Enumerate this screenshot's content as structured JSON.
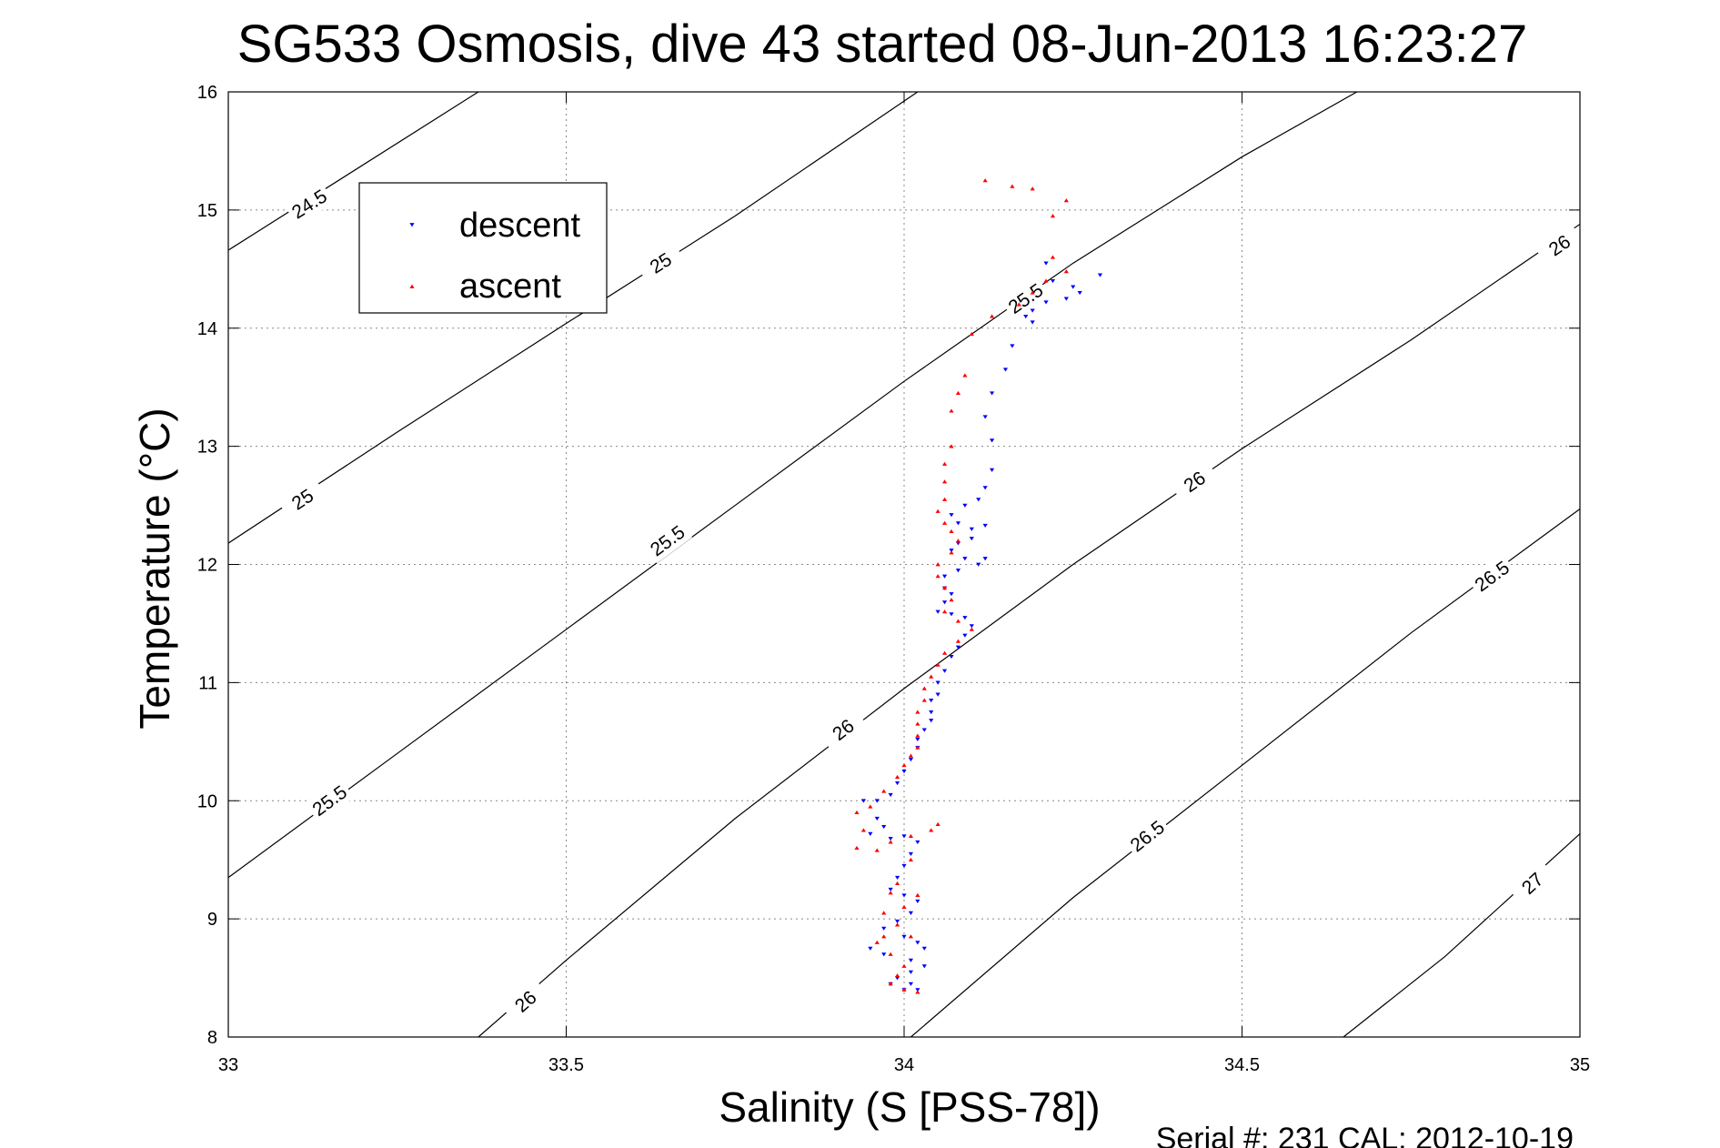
{
  "chart_data": {
    "type": "scatter",
    "title": "SG533 Osmosis, dive 43 started 08-Jun-2013 16:23:27",
    "xlabel": "Salinity (S [PSS-78])",
    "ylabel": "Temperature (°C)",
    "xlim": [
      33,
      35
    ],
    "ylim": [
      8,
      16
    ],
    "xticks": [
      "33",
      "33.5",
      "34",
      "34.5",
      "35"
    ],
    "yticks": [
      "8",
      "9",
      "10",
      "11",
      "12",
      "13",
      "14",
      "15",
      "16"
    ],
    "grid": true,
    "legend_position": "top-left",
    "footer": "Serial #: 231  CAL: 2012-10-19",
    "contours": [
      {
        "label": "24.5",
        "points": [
          [
            33.0,
            14.66
          ],
          [
            33.37,
            16.0
          ]
        ],
        "label_at": [
          [
            33.12,
            15.05
          ]
        ]
      },
      {
        "label": "25",
        "points": [
          [
            33.0,
            12.18
          ],
          [
            33.25,
            13.12
          ],
          [
            33.5,
            14.04
          ],
          [
            33.75,
            14.95
          ],
          [
            34.02,
            16.0
          ]
        ],
        "label_at": [
          [
            33.11,
            12.55
          ],
          [
            33.64,
            14.55
          ]
        ]
      },
      {
        "label": "25.5",
        "points": [
          [
            33.0,
            9.35
          ],
          [
            33.25,
            10.4
          ],
          [
            33.5,
            11.45
          ],
          [
            33.75,
            12.5
          ],
          [
            34.0,
            13.55
          ],
          [
            34.25,
            14.55
          ],
          [
            34.5,
            15.45
          ],
          [
            34.67,
            16.0
          ]
        ],
        "label_at": [
          [
            33.15,
            10.0
          ],
          [
            33.65,
            12.2
          ],
          [
            34.18,
            14.25
          ]
        ]
      },
      {
        "label": "26",
        "points": [
          [
            33.37,
            8.0
          ],
          [
            33.5,
            8.65
          ],
          [
            33.75,
            9.85
          ],
          [
            34.0,
            10.95
          ],
          [
            34.25,
            12.0
          ],
          [
            34.5,
            12.98
          ],
          [
            34.75,
            13.9
          ],
          [
            35.0,
            14.88
          ]
        ],
        "label_at": [
          [
            33.44,
            8.3
          ],
          [
            33.91,
            10.6
          ],
          [
            34.43,
            12.7
          ],
          [
            34.97,
            14.7
          ]
        ]
      },
      {
        "label": "26.5",
        "points": [
          [
            34.01,
            8.0
          ],
          [
            34.25,
            9.18
          ],
          [
            34.5,
            10.3
          ],
          [
            34.75,
            11.42
          ],
          [
            35.0,
            12.47
          ]
        ],
        "label_at": [
          [
            34.36,
            9.7
          ],
          [
            34.87,
            11.9
          ]
        ]
      },
      {
        "label": "27",
        "points": [
          [
            34.65,
            8.0
          ],
          [
            34.8,
            8.68
          ],
          [
            35.0,
            9.72
          ]
        ],
        "label_at": [
          [
            34.93,
            9.3
          ]
        ]
      }
    ],
    "series": [
      {
        "name": "descent",
        "color": "#0000ff",
        "marker": "triangle-down",
        "points": [
          [
            34.21,
            14.55
          ],
          [
            34.22,
            14.4
          ],
          [
            34.25,
            14.35
          ],
          [
            34.29,
            14.45
          ],
          [
            34.26,
            14.3
          ],
          [
            34.24,
            14.25
          ],
          [
            34.21,
            14.22
          ],
          [
            34.19,
            14.15
          ],
          [
            34.18,
            14.1
          ],
          [
            34.19,
            14.05
          ],
          [
            34.16,
            13.85
          ],
          [
            34.15,
            13.65
          ],
          [
            34.13,
            13.45
          ],
          [
            34.12,
            13.25
          ],
          [
            34.13,
            13.05
          ],
          [
            34.13,
            12.8
          ],
          [
            34.12,
            12.65
          ],
          [
            34.11,
            12.55
          ],
          [
            34.09,
            12.5
          ],
          [
            34.07,
            12.42
          ],
          [
            34.08,
            12.35
          ],
          [
            34.1,
            12.3
          ],
          [
            34.12,
            12.33
          ],
          [
            34.1,
            12.22
          ],
          [
            34.08,
            12.18
          ],
          [
            34.07,
            12.12
          ],
          [
            34.09,
            12.05
          ],
          [
            34.12,
            12.05
          ],
          [
            34.11,
            12.0
          ],
          [
            34.08,
            11.95
          ],
          [
            34.06,
            11.9
          ],
          [
            34.06,
            11.8
          ],
          [
            34.07,
            11.75
          ],
          [
            34.06,
            11.68
          ],
          [
            34.05,
            11.6
          ],
          [
            34.07,
            11.58
          ],
          [
            34.09,
            11.55
          ],
          [
            34.1,
            11.48
          ],
          [
            34.09,
            11.4
          ],
          [
            34.08,
            11.3
          ],
          [
            34.07,
            11.22
          ],
          [
            34.06,
            11.1
          ],
          [
            34.05,
            11.0
          ],
          [
            34.05,
            10.9
          ],
          [
            34.04,
            10.85
          ],
          [
            34.04,
            10.75
          ],
          [
            34.04,
            10.68
          ],
          [
            34.03,
            10.6
          ],
          [
            34.02,
            10.52
          ],
          [
            34.02,
            10.45
          ],
          [
            34.01,
            10.35
          ],
          [
            34.0,
            10.25
          ],
          [
            33.99,
            10.15
          ],
          [
            33.98,
            10.05
          ],
          [
            33.96,
            10.0
          ],
          [
            33.94,
            10.0
          ],
          [
            33.96,
            9.85
          ],
          [
            33.97,
            9.78
          ],
          [
            33.95,
            9.72
          ],
          [
            33.98,
            9.68
          ],
          [
            34.0,
            9.7
          ],
          [
            34.02,
            9.65
          ],
          [
            34.01,
            9.55
          ],
          [
            34.0,
            9.45
          ],
          [
            33.99,
            9.35
          ],
          [
            33.98,
            9.25
          ],
          [
            34.0,
            9.2
          ],
          [
            34.02,
            9.15
          ],
          [
            34.01,
            9.05
          ],
          [
            33.99,
            8.98
          ],
          [
            33.97,
            8.92
          ],
          [
            34.0,
            8.85
          ],
          [
            34.02,
            8.8
          ],
          [
            34.03,
            8.75
          ],
          [
            33.95,
            8.75
          ],
          [
            33.97,
            8.7
          ],
          [
            34.01,
            8.65
          ],
          [
            34.03,
            8.6
          ],
          [
            34.01,
            8.55
          ],
          [
            33.99,
            8.5
          ],
          [
            34.01,
            8.45
          ],
          [
            34.02,
            8.4
          ],
          [
            33.98,
            8.45
          ],
          [
            34.0,
            8.4
          ]
        ]
      },
      {
        "name": "ascent",
        "color": "#ff0000",
        "marker": "triangle-up",
        "points": [
          [
            34.12,
            15.25
          ],
          [
            34.16,
            15.2
          ],
          [
            34.19,
            15.18
          ],
          [
            34.24,
            15.08
          ],
          [
            34.22,
            14.95
          ],
          [
            34.22,
            14.6
          ],
          [
            34.24,
            14.48
          ],
          [
            34.21,
            14.4
          ],
          [
            34.19,
            14.3
          ],
          [
            34.17,
            14.2
          ],
          [
            34.13,
            14.1
          ],
          [
            34.1,
            13.95
          ],
          [
            34.09,
            13.6
          ],
          [
            34.08,
            13.45
          ],
          [
            34.07,
            13.3
          ],
          [
            34.07,
            13.0
          ],
          [
            34.06,
            12.85
          ],
          [
            34.06,
            12.7
          ],
          [
            34.06,
            12.55
          ],
          [
            34.05,
            12.45
          ],
          [
            34.06,
            12.35
          ],
          [
            34.07,
            12.28
          ],
          [
            34.08,
            12.2
          ],
          [
            34.07,
            12.1
          ],
          [
            34.05,
            12.0
          ],
          [
            34.05,
            11.9
          ],
          [
            34.06,
            11.8
          ],
          [
            34.07,
            11.7
          ],
          [
            34.06,
            11.6
          ],
          [
            34.08,
            11.52
          ],
          [
            34.1,
            11.45
          ],
          [
            34.08,
            11.35
          ],
          [
            34.06,
            11.25
          ],
          [
            34.05,
            11.15
          ],
          [
            34.04,
            11.05
          ],
          [
            34.03,
            10.95
          ],
          [
            34.03,
            10.85
          ],
          [
            34.02,
            10.75
          ],
          [
            34.02,
            10.65
          ],
          [
            34.02,
            10.55
          ],
          [
            34.02,
            10.45
          ],
          [
            34.01,
            10.38
          ],
          [
            34.0,
            10.3
          ],
          [
            33.99,
            10.2
          ],
          [
            33.97,
            10.08
          ],
          [
            33.95,
            9.95
          ],
          [
            33.93,
            9.9
          ],
          [
            33.94,
            9.75
          ],
          [
            33.93,
            9.6
          ],
          [
            33.96,
            9.58
          ],
          [
            33.98,
            9.65
          ],
          [
            34.01,
            9.7
          ],
          [
            34.04,
            9.75
          ],
          [
            34.05,
            9.8
          ],
          [
            34.01,
            9.5
          ],
          [
            33.99,
            9.3
          ],
          [
            33.98,
            9.22
          ],
          [
            34.02,
            9.2
          ],
          [
            34.0,
            9.1
          ],
          [
            33.97,
            9.05
          ],
          [
            33.99,
            8.95
          ],
          [
            34.01,
            8.85
          ],
          [
            33.97,
            8.85
          ],
          [
            33.96,
            8.8
          ],
          [
            33.98,
            8.7
          ],
          [
            34.0,
            8.6
          ],
          [
            33.99,
            8.52
          ],
          [
            33.98,
            8.45
          ],
          [
            34.0,
            8.4
          ],
          [
            34.02,
            8.38
          ]
        ]
      }
    ]
  }
}
